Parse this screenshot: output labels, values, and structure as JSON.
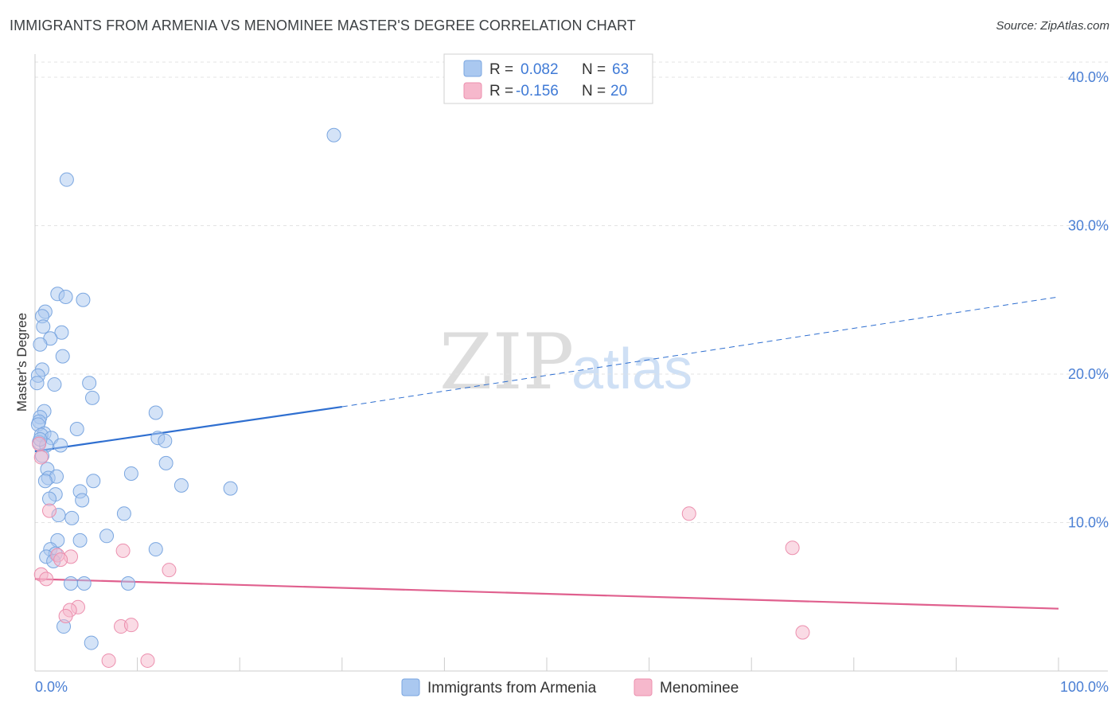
{
  "title": "IMMIGRANTS FROM ARMENIA VS MENOMINEE MASTER'S DEGREE CORRELATION CHART",
  "source": "Source: ZipAtlas.com",
  "watermark": {
    "zip": "ZIP",
    "atlas": "atlas"
  },
  "colors": {
    "blue_fill": "#aac8f0",
    "blue_stroke": "#7aa6e0",
    "blue_line": "#2f6fd0",
    "pink_fill": "#f6b8cc",
    "pink_stroke": "#ec8fae",
    "pink_line": "#e0608e",
    "grid": "#e3e3e3",
    "axis": "#cccccc"
  },
  "legend": {
    "rows": [
      {
        "r_label": "R =",
        "r_value": "0.082",
        "n_label": "N =",
        "n_value": "63"
      },
      {
        "r_label": "R =",
        "r_value": "-0.156",
        "n_label": "N =",
        "n_value": "20"
      }
    ]
  },
  "chart_data": {
    "type": "scatter",
    "title": "IMMIGRANTS FROM ARMENIA VS MENOMINEE MASTER'S DEGREE CORRELATION CHART",
    "xlabel": "",
    "ylabel": "Master's Degree",
    "xlim": [
      0,
      100
    ],
    "ylim": [
      0,
      42
    ],
    "x_tick_labels": [
      "0.0%",
      "100.0%"
    ],
    "y_ticks": [
      10,
      20,
      30,
      40
    ],
    "y_tick_labels": [
      "10.0%",
      "20.0%",
      "30.0%",
      "40.0%"
    ],
    "grid": true,
    "series": [
      {
        "name": "Immigrants from Armenia",
        "color": "blue",
        "r": 0.082,
        "n": 63,
        "trend": {
          "x0": 0,
          "y0": 14.8,
          "x1": 30,
          "y1": 17.8,
          "x_extend": 100,
          "y_extend": 25.2
        },
        "points": [
          [
            29.2,
            36.1
          ],
          [
            3.1,
            33.1
          ],
          [
            2.2,
            25.4
          ],
          [
            3.0,
            25.2
          ],
          [
            4.7,
            25.0
          ],
          [
            1.0,
            24.2
          ],
          [
            0.7,
            23.9
          ],
          [
            0.8,
            23.2
          ],
          [
            2.6,
            22.8
          ],
          [
            1.5,
            22.4
          ],
          [
            0.5,
            22.0
          ],
          [
            2.7,
            21.2
          ],
          [
            0.7,
            20.3
          ],
          [
            0.3,
            19.9
          ],
          [
            0.2,
            19.4
          ],
          [
            1.9,
            19.3
          ],
          [
            5.3,
            19.4
          ],
          [
            5.6,
            18.4
          ],
          [
            0.9,
            17.5
          ],
          [
            11.8,
            17.4
          ],
          [
            0.5,
            17.1
          ],
          [
            0.4,
            16.8
          ],
          [
            0.3,
            16.6
          ],
          [
            4.1,
            16.3
          ],
          [
            0.9,
            16.0
          ],
          [
            0.6,
            15.9
          ],
          [
            1.6,
            15.7
          ],
          [
            12.0,
            15.7
          ],
          [
            12.7,
            15.5
          ],
          [
            0.4,
            15.4
          ],
          [
            1.1,
            15.2
          ],
          [
            2.5,
            15.2
          ],
          [
            0.7,
            14.5
          ],
          [
            12.8,
            14.0
          ],
          [
            1.2,
            13.6
          ],
          [
            9.4,
            13.3
          ],
          [
            1.3,
            13.0
          ],
          [
            2.1,
            13.1
          ],
          [
            5.7,
            12.8
          ],
          [
            1.0,
            12.8
          ],
          [
            14.3,
            12.5
          ],
          [
            19.1,
            12.3
          ],
          [
            4.4,
            12.1
          ],
          [
            2.0,
            11.9
          ],
          [
            1.4,
            11.6
          ],
          [
            4.6,
            11.5
          ],
          [
            8.7,
            10.6
          ],
          [
            2.3,
            10.5
          ],
          [
            3.6,
            10.3
          ],
          [
            7.0,
            9.1
          ],
          [
            2.2,
            8.8
          ],
          [
            4.4,
            8.8
          ],
          [
            1.5,
            8.2
          ],
          [
            11.8,
            8.2
          ],
          [
            2.0,
            7.9
          ],
          [
            1.1,
            7.7
          ],
          [
            1.8,
            7.4
          ],
          [
            3.5,
            5.9
          ],
          [
            4.8,
            5.9
          ],
          [
            9.1,
            5.9
          ],
          [
            2.8,
            3.0
          ],
          [
            5.5,
            1.9
          ],
          [
            0.5,
            15.6
          ]
        ]
      },
      {
        "name": "Menominee",
        "color": "pink",
        "r": -0.156,
        "n": 20,
        "trend": {
          "x0": 0,
          "y0": 6.2,
          "x1": 100,
          "y1": 4.2
        },
        "points": [
          [
            0.4,
            15.3
          ],
          [
            0.6,
            14.4
          ],
          [
            1.4,
            10.8
          ],
          [
            63.9,
            10.6
          ],
          [
            74.0,
            8.3
          ],
          [
            8.6,
            8.1
          ],
          [
            2.2,
            7.8
          ],
          [
            3.5,
            7.7
          ],
          [
            2.5,
            7.5
          ],
          [
            13.1,
            6.8
          ],
          [
            0.6,
            6.5
          ],
          [
            1.1,
            6.2
          ],
          [
            4.2,
            4.3
          ],
          [
            3.4,
            4.1
          ],
          [
            3.0,
            3.7
          ],
          [
            8.4,
            3.0
          ],
          [
            9.4,
            3.1
          ],
          [
            75.0,
            2.6
          ],
          [
            7.2,
            0.7
          ],
          [
            11.0,
            0.7
          ]
        ]
      }
    ],
    "legend_position": "top-center"
  },
  "bottom_legend": {
    "items": [
      {
        "label": "Immigrants from Armenia"
      },
      {
        "label": "Menominee"
      }
    ]
  }
}
